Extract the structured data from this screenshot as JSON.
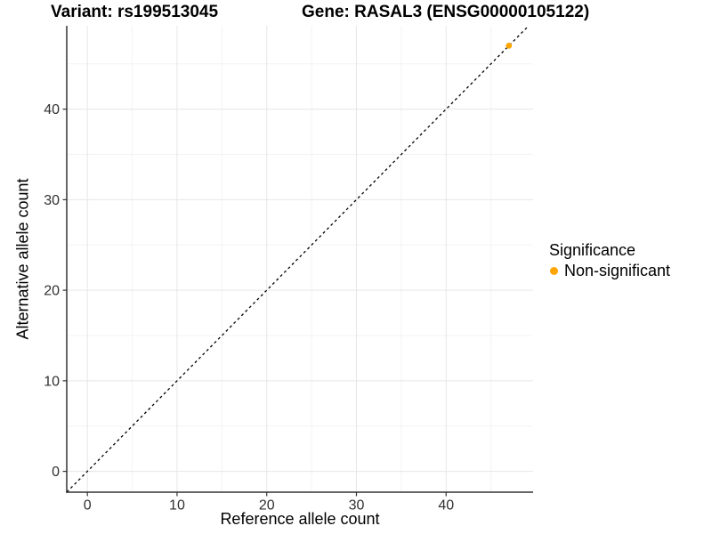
{
  "titles": {
    "variant": "Variant: rs199513045",
    "gene": "Gene: RASAL3 (ENSG00000105122)"
  },
  "axes": {
    "x_label": "Reference allele count",
    "y_label": "Alternative allele count"
  },
  "legend": {
    "title": "Significance",
    "items": [
      {
        "label": "Non-significant",
        "color": "#FFA500"
      }
    ]
  },
  "colors": {
    "background": "#FFFFFF",
    "point": "#FFA500",
    "axis_line": "#333333",
    "tick_label": "#303030",
    "grid_major": "#E6E6E6",
    "grid_minor": "#F3F3F3",
    "reference_line": "#000000",
    "title_text": "#000000"
  },
  "chart_data": {
    "type": "scatter",
    "title": "Variant: rs199513045   Gene: RASAL3 (ENSG00000105122)",
    "xlabel": "Reference allele count",
    "ylabel": "Alternative allele count",
    "xlim": [
      -2.3,
      49.7
    ],
    "ylim": [
      -2.3,
      49.2
    ],
    "x_ticks": [
      0,
      10,
      20,
      30,
      40
    ],
    "y_ticks": [
      0,
      10,
      20,
      30,
      40
    ],
    "x_minor_ticks": [
      5,
      15,
      25,
      35,
      45
    ],
    "y_minor_ticks": [
      5,
      15,
      25,
      35,
      45
    ],
    "grid": true,
    "legend_position": "right",
    "reference_line": {
      "type": "identity",
      "slope": 1,
      "intercept": 0,
      "style": "dashed",
      "color": "#000000"
    },
    "series": [
      {
        "name": "Non-significant",
        "color": "#FFA500",
        "points": [
          {
            "x": 47,
            "y": 47
          }
        ]
      }
    ]
  }
}
